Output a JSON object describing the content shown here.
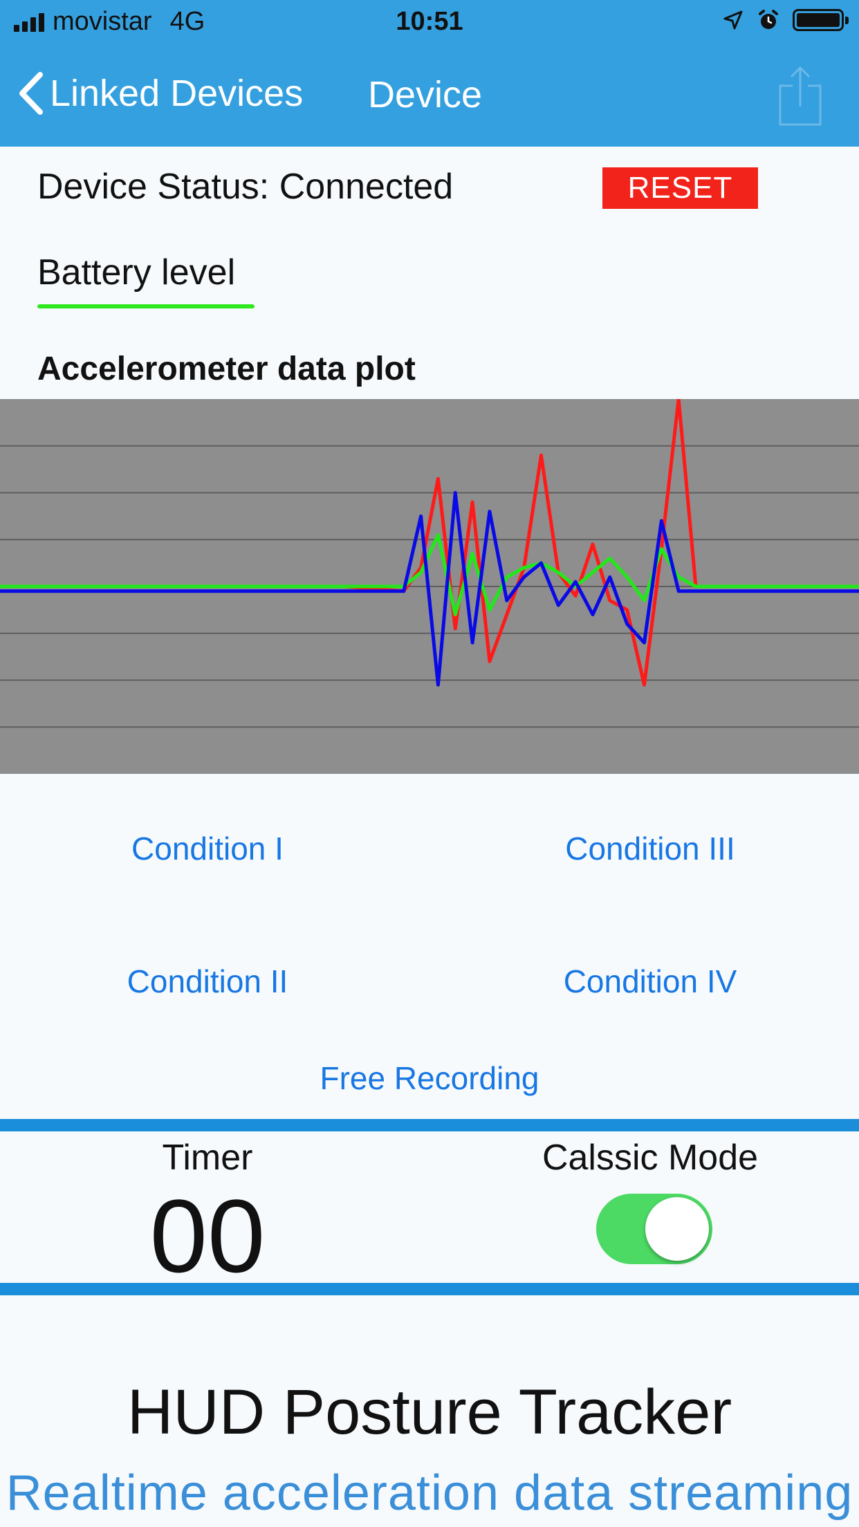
{
  "status_bar": {
    "carrier": "movistar",
    "network": "4G",
    "time": "10:51"
  },
  "nav": {
    "back_label": "Linked Devices",
    "title": "Device"
  },
  "device": {
    "status_text": "Device Status: Connected",
    "reset_label": "RESET",
    "battery_label": "Battery level"
  },
  "plot": {
    "title": "Accelerometer data plot",
    "background": "#8e8e8e",
    "grid": true
  },
  "chart_data": {
    "type": "line",
    "title": "Accelerometer data plot",
    "grid": true,
    "x": [
      0,
      20,
      40,
      47,
      49,
      51,
      53,
      55,
      57,
      59,
      61,
      63,
      65,
      67,
      69,
      71,
      73,
      75,
      77,
      79,
      81,
      83,
      85,
      100
    ],
    "ylim": [
      -4,
      4
    ],
    "series": [
      {
        "color": "#ff1a1a",
        "values": [
          0,
          0,
          0,
          -0.1,
          0.4,
          2.3,
          -0.9,
          1.8,
          -1.6,
          -0.6,
          0.4,
          2.8,
          0.3,
          -0.2,
          0.9,
          -0.3,
          -0.5,
          -2.1,
          0.8,
          4.0,
          0,
          0,
          0,
          0
        ]
      },
      {
        "color": "#22e81a",
        "values": [
          0,
          0,
          0,
          0,
          0.3,
          1.1,
          -0.6,
          0.7,
          -0.5,
          0.2,
          0.4,
          0.5,
          0.3,
          0,
          0.3,
          0.6,
          0.2,
          -0.3,
          0.8,
          0.2,
          0,
          0,
          0,
          0
        ]
      },
      {
        "color": "#0a0ae6",
        "values": [
          -0.1,
          -0.1,
          -0.1,
          -0.1,
          1.5,
          -2.1,
          2.0,
          -1.2,
          1.6,
          -0.3,
          0.2,
          0.5,
          -0.4,
          0.1,
          -0.6,
          0.2,
          -0.8,
          -1.2,
          1.4,
          -0.1,
          -0.1,
          -0.1,
          -0.1,
          -0.1
        ]
      }
    ]
  },
  "conditions": {
    "c1": "Condition I",
    "c2": "Condition II",
    "c3": "Condition III",
    "c4": "Condition IV",
    "free": "Free Recording"
  },
  "timer": {
    "label": "Timer",
    "value": "00"
  },
  "mode": {
    "label": "Calssic Mode",
    "enabled": true
  },
  "footer": {
    "title": "HUD Posture Tracker",
    "subtitle": "Realtime acceleration data streaming"
  },
  "colors": {
    "nav": "#35a0df",
    "accent": "#1877e3",
    "reset": "#f2231a",
    "battery": "#2ee81e",
    "toggle_on": "#4cd964"
  }
}
